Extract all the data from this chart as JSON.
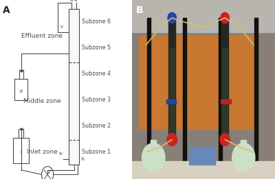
{
  "panel_A_label": "A",
  "panel_B_label": "B",
  "zones": [
    "Effluent zone",
    "Middle zone",
    "Inlet zone"
  ],
  "subzones": [
    "Subzone 6",
    "Subzone 5",
    "Subzone 4",
    "Subzone 3",
    "Subzone 2",
    "Subzone 1"
  ],
  "bg_color": "#ffffff",
  "line_color": "#4a4a4a",
  "font_size_zone": 6.5,
  "font_size_subzone": 5.8,
  "font_size_panel": 10,
  "font_size_small": 5.0,
  "photo_bg": "#8a8075",
  "photo_orange": "#c87830",
  "photo_dark": "#1a1a1a",
  "photo_tube": "#2a2e1a",
  "photo_flask": "#d8e8d0",
  "photo_blue_cap": "#2244aa",
  "photo_red_cap": "#bb2222",
  "photo_tube_color": "#d4c070"
}
